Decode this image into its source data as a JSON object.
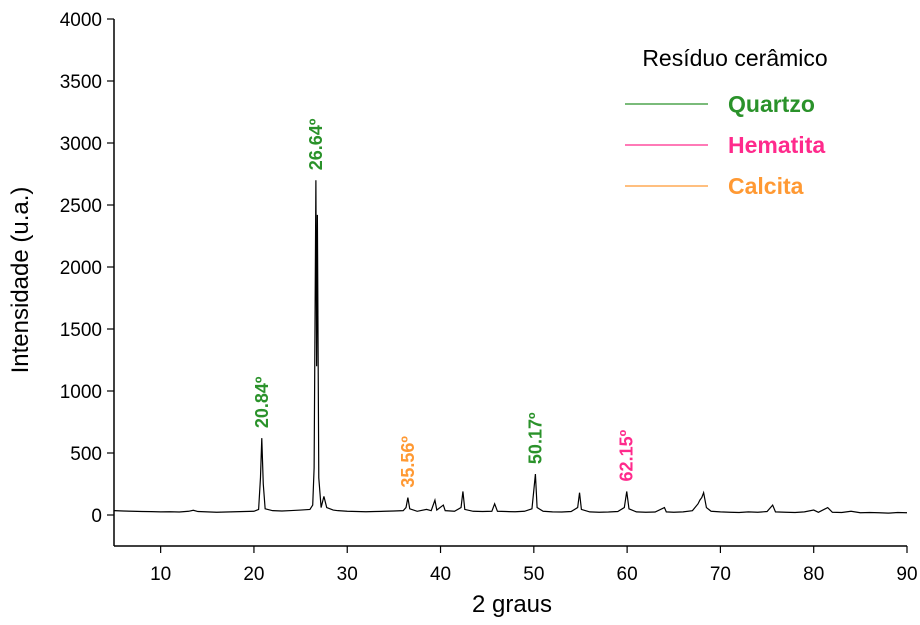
{
  "chart_data": {
    "type": "line",
    "xlabel": "2 graus",
    "ylabel": "Intensidade (u.a.)",
    "x": [
      5,
      6,
      7,
      8,
      9,
      10,
      11,
      12,
      13,
      13.5,
      14,
      15,
      16,
      17,
      18,
      19,
      20,
      20.5,
      20.7,
      20.84,
      21,
      21.2,
      22,
      23,
      24,
      25,
      26,
      26.3,
      26.45,
      26.64,
      26.72,
      26.8,
      26.95,
      27.2,
      27.5,
      27.8,
      28.5,
      29,
      30,
      31,
      32,
      33,
      34,
      35,
      36,
      36.3,
      36.5,
      36.7,
      37.5,
      38.5,
      39,
      39.4,
      39.6,
      40.3,
      40.5,
      41.5,
      42.2,
      42.4,
      42.6,
      43.5,
      44.5,
      45.5,
      45.8,
      46.1,
      47,
      48,
      49,
      49.8,
      50,
      50.17,
      50.35,
      51,
      52,
      53,
      54,
      54.7,
      54.9,
      55.1,
      56,
      57,
      58,
      59,
      59.7,
      59.96,
      60.2,
      61,
      62,
      63,
      64,
      64.2,
      65,
      66,
      67,
      67.6,
      67.8,
      68,
      68.2,
      68.5,
      69,
      70,
      71,
      72,
      73,
      74,
      75,
      75.6,
      75.9,
      77,
      78,
      79,
      80,
      80.5,
      81.5,
      82,
      83,
      84,
      85,
      86,
      87,
      88,
      89,
      90
    ],
    "series": [
      {
        "color": "#000000",
        "values": [
          35,
          32,
          30,
          28,
          27,
          25,
          26,
          24,
          30,
          38,
          28,
          25,
          22,
          24,
          26,
          28,
          30,
          45,
          300,
          620,
          250,
          50,
          35,
          32,
          36,
          40,
          45,
          80,
          380,
          2700,
          1200,
          2420,
          300,
          60,
          150,
          60,
          40,
          35,
          30,
          28,
          26,
          28,
          30,
          32,
          35,
          60,
          140,
          50,
          30,
          45,
          35,
          120,
          40,
          80,
          35,
          30,
          60,
          190,
          45,
          30,
          28,
          30,
          90,
          30,
          28,
          26,
          30,
          50,
          200,
          330,
          60,
          30,
          25,
          24,
          28,
          60,
          180,
          45,
          25,
          22,
          24,
          28,
          60,
          190,
          50,
          25,
          22,
          24,
          60,
          25,
          22,
          25,
          35,
          90,
          120,
          140,
          180,
          60,
          30,
          25,
          22,
          20,
          25,
          22,
          28,
          80,
          25,
          22,
          20,
          25,
          40,
          22,
          60,
          22,
          20,
          30,
          18,
          20,
          18,
          15,
          20,
          18
        ]
      }
    ],
    "xlim": [
      5,
      90
    ],
    "xticks": [
      10,
      20,
      30,
      40,
      50,
      60,
      70,
      80,
      90
    ],
    "ylim": [
      -250,
      4000
    ],
    "yticks": [
      0,
      500,
      1000,
      1500,
      2000,
      2500,
      3000,
      3500,
      4000
    ],
    "annotations": [
      {
        "text": "20.84º",
        "x": 20.84,
        "color": "#2a922a"
      },
      {
        "text": "26.64º",
        "x": 26.64,
        "color": "#2a922a"
      },
      {
        "text": "35.56º",
        "x": 36.5,
        "color": "#ff9933"
      },
      {
        "text": "50.17º",
        "x": 50.17,
        "color": "#2a922a"
      },
      {
        "text": "62.15º",
        "x": 59.96,
        "color": "#ff2a8c"
      }
    ],
    "legend": {
      "title": "Resíduo cerâmico",
      "entries": [
        {
          "name": "Quartzo",
          "color": "#2a922a"
        },
        {
          "name": "Hematita",
          "color": "#ff2a8c"
        },
        {
          "name": "Calcita",
          "color": "#ff9933"
        }
      ]
    }
  }
}
